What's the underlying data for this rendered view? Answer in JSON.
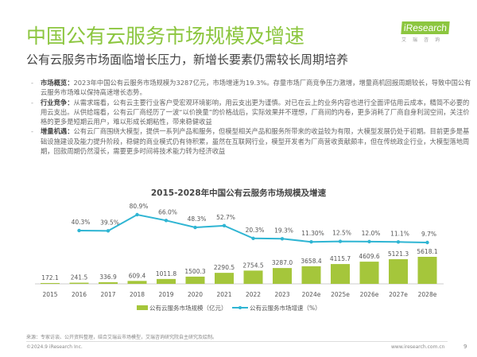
{
  "header": {
    "title": "中国公有云服务市场规模及增速",
    "subtitle": "公有云服务市场面临增长压力，新增长要素仍需较长周期培养",
    "logo_text": "iResearch",
    "logo_cn": "艾瑞咨询"
  },
  "bullets": [
    {
      "label": "市场概览：",
      "text": "2023年中国公有云服务市场规模为3287亿元，市场增速为19.3%。存量市场厂商竞争压力激增，增量商机回报周期较长，导致中国公有云服务市场难以保持高速增长态势。"
    },
    {
      "label": "行业竞争：",
      "text": "从需求端看，公有云主要行业客户受宏观环境影响，用云支出更为谨慎。对已在云上的业务内容也进行全面评估用云成本，精简不必要的用云支出。从供给端看，公有云厂商经历了一波“以价换量”的价格战后，实际效果并不理想，厂商间的内卷，更多消耗了厂商自身利润空间，关注价格的更多是短期云用户，难以形成长期粘性，带来稳健收益"
    },
    {
      "label": "增量机遇：",
      "text": "公有云厂商围绕大模型，提供一系列产品和服务，但模型相关产品和服务所带来的收益较为有限，大模型发展仍处于初期。目前更多是基础设施建设及能力提升阶段，稳健的商业模式仍有待积累，虽然在互联网行业，模型开发者为厂商营收贡献颇丰，但在传统政企行业，大模型落地周期，回款周期仍然漫长，需要更多时间将技术能力转为经济收益"
    }
  ],
  "chart_data": {
    "type": "bar+line",
    "title": "2015-2028年中国公有云服务市场规模及增速",
    "categories": [
      "2015",
      "2016",
      "2017",
      "2018",
      "2019",
      "2020",
      "2021",
      "2022",
      "2023",
      "2024e",
      "2025e",
      "2026e",
      "2027e",
      "2028e"
    ],
    "series": [
      {
        "name": "公有云服务市场规模（亿元）",
        "type": "bar",
        "color": "#a5c63b",
        "values": [
          172.1,
          241.5,
          336.9,
          609.4,
          1011.8,
          1500.3,
          2290.5,
          2754.5,
          3287.0,
          3658.4,
          4115.7,
          4609.6,
          5121.3,
          5618.1
        ],
        "labels": [
          "172.1",
          "241.5",
          "336.9",
          "609.4",
          "1011.8",
          "1500.3",
          "2290.5",
          "2754.5",
          "3287.0",
          "3658.4",
          "4115.7",
          "4609.6",
          "5121.3",
          "5618.1"
        ]
      },
      {
        "name": "公有云服务市场增速（%）",
        "type": "line",
        "color": "#2fb5d3",
        "values": [
          null,
          40.3,
          39.5,
          80.9,
          66.0,
          48.3,
          52.7,
          20.3,
          19.3,
          11.3,
          12.5,
          12.0,
          11.1,
          9.7
        ],
        "labels": [
          "",
          "40.3%",
          "39.5%",
          "80.9%",
          "66.0%",
          "48.3%",
          "52.7%",
          "20.3%",
          "19.3%",
          "11.30%",
          "12.5%",
          "12.0%",
          "11.1%",
          "9.7%"
        ]
      }
    ],
    "legend": "bottom",
    "grid": false
  },
  "footer": {
    "source": "来源：专家访谈、公开资料整理，结合艾瑞云市场模型，艾瑞咨询研究院自主研究及绘制。",
    "copyright": "©2024.9 iResearch Inc.",
    "url": "www.iresearch.com.cn",
    "page": "9"
  }
}
